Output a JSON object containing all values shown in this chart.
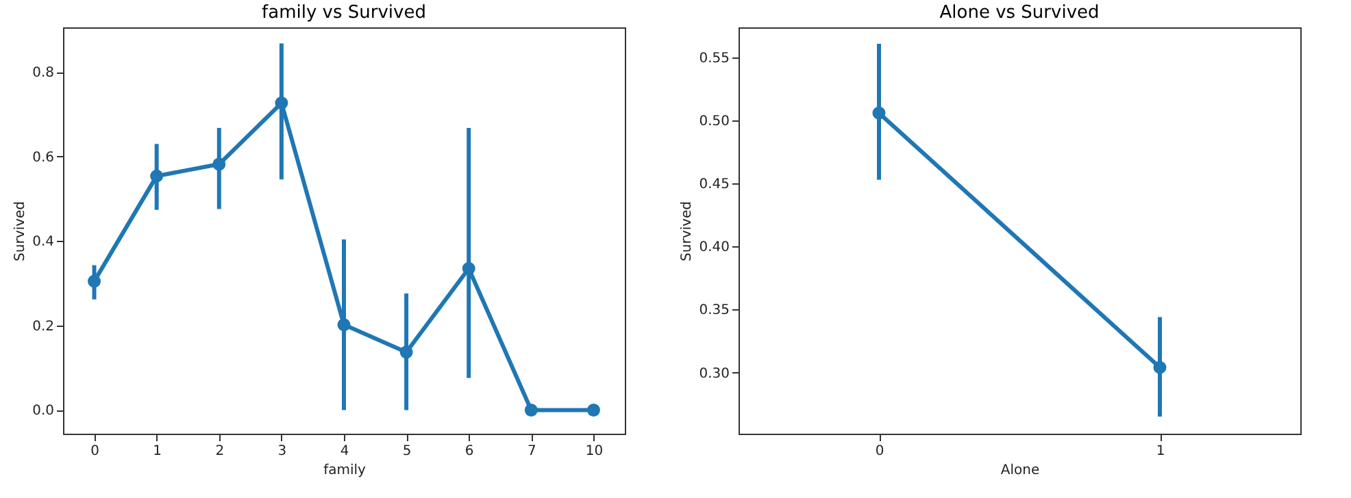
{
  "chart_data": [
    {
      "type": "line",
      "title": "family vs Survived",
      "xlabel": "family",
      "ylabel": "Survived",
      "categories": [
        "0",
        "1",
        "2",
        "3",
        "4",
        "5",
        "6",
        "7",
        "10"
      ],
      "ylim": [
        -0.056,
        0.906
      ],
      "yticks": [
        {
          "value": 0,
          "label": "0.0"
        },
        {
          "value": 0.2,
          "label": "0.2"
        },
        {
          "value": 0.4,
          "label": "0.4"
        },
        {
          "value": 0.6,
          "label": "0.6"
        },
        {
          "value": 0.8,
          "label": "0.8"
        }
      ],
      "marker": "circle",
      "series": [
        {
          "color": "#1f77b4",
          "values": [
            0.305,
            0.554,
            0.582,
            0.727,
            0.202,
            0.137,
            0.335,
            0,
            0
          ],
          "errors": [
            [
              0.262,
              0.343
            ],
            [
              0.474,
              0.63
            ],
            [
              0.476,
              0.668
            ],
            [
              0.546,
              0.868
            ],
            [
              0,
              0.404
            ],
            [
              0,
              0.276
            ],
            [
              0.076,
              0.668
            ],
            null,
            null
          ]
        }
      ]
    },
    {
      "type": "line",
      "title": "Alone vs Survived",
      "xlabel": "Alone",
      "ylabel": "Survived",
      "categories": [
        "0",
        "1"
      ],
      "ylim": [
        0.2514,
        0.574
      ],
      "yticks": [
        {
          "value": 0.3,
          "label": "0.30"
        },
        {
          "value": 0.35,
          "label": "0.35"
        },
        {
          "value": 0.4,
          "label": "0.40"
        },
        {
          "value": 0.45,
          "label": "0.45"
        },
        {
          "value": 0.5,
          "label": "0.50"
        },
        {
          "value": 0.55,
          "label": "0.55"
        }
      ],
      "marker": "circle",
      "series": [
        {
          "color": "#1f77b4",
          "values": [
            0.506,
            0.304
          ],
          "errors": [
            [
              0.453,
              0.561
            ],
            [
              0.265,
              0.344
            ]
          ]
        }
      ]
    }
  ]
}
